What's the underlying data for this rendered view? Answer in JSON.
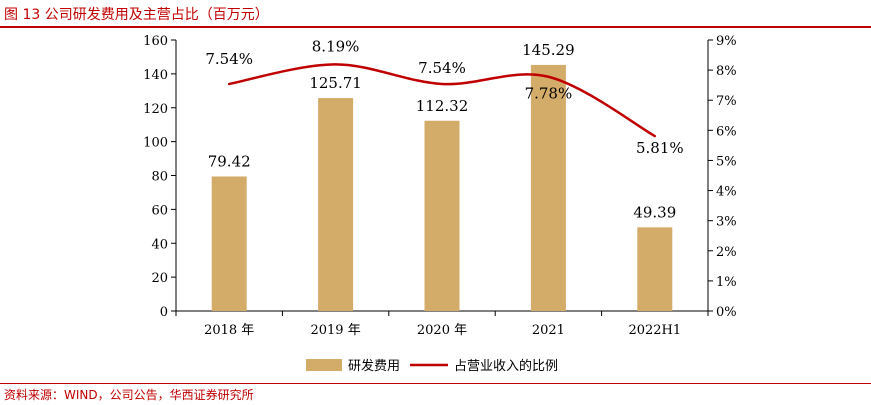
{
  "header": {
    "title": "图 13 公司研发费用及主营占比（百万元）",
    "accent_color": "#c00000"
  },
  "footer": {
    "source": "资料来源：WIND，公司公告，华西证券研究所"
  },
  "chart_data": {
    "type": "bar",
    "categories": [
      "2018 年",
      "2019 年",
      "2020 年",
      "2021",
      "2022H1"
    ],
    "series": [
      {
        "name": "研发费用",
        "type": "bar",
        "axis": "left",
        "color": "#d4ac6a",
        "values": [
          79.42,
          125.71,
          112.32,
          145.29,
          49.39
        ],
        "labels": [
          "79.42",
          "125.71",
          "112.32",
          "145.29",
          "49.39"
        ]
      },
      {
        "name": "占营业收入的比例",
        "type": "line",
        "smooth": true,
        "axis": "right",
        "color": "#c00000",
        "values": [
          7.54,
          8.19,
          7.54,
          7.78,
          5.81
        ],
        "labels": [
          "7.54%",
          "8.19%",
          "7.54%",
          "7.78%",
          "5.81%"
        ]
      }
    ],
    "y_left": {
      "ylim": [
        0,
        160
      ],
      "ticks": [
        0,
        20,
        40,
        60,
        80,
        100,
        120,
        140,
        160
      ],
      "tick_labels": [
        "0",
        "20",
        "40",
        "60",
        "80",
        "100",
        "120",
        "140",
        "160"
      ]
    },
    "y_right": {
      "ylim": [
        0,
        9
      ],
      "ticks": [
        0,
        1,
        2,
        3,
        4,
        5,
        6,
        7,
        8,
        9
      ],
      "tick_labels": [
        "0%",
        "1%",
        "2%",
        "3%",
        "4%",
        "5%",
        "6%",
        "7%",
        "8%",
        "9%"
      ]
    },
    "grid": false,
    "legend_position": "bottom"
  }
}
